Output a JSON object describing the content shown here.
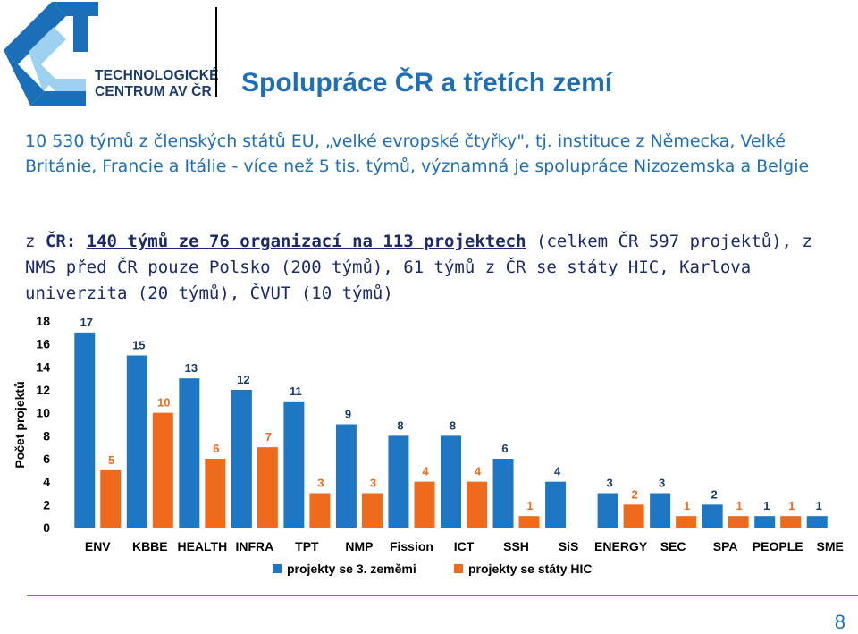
{
  "logo": {
    "line1": "TECHNOLOGICKÉ",
    "line2": "CENTRUM AV ČR"
  },
  "title": "Spolupráce ČR a třetích zemí",
  "para1": "10 530 týmů z členských států EU, „velké evropské čtyřky\", tj. instituce z Německa, Velké Británie, Francie a Itálie  - více než 5 tis. týmů, významná je spolupráce Nizozemska a Belgie",
  "para2": {
    "prefix": "z ",
    "cr": "ČR:",
    "bold": "140 týmů ze 76 organizací na 113 projektech",
    "rest": " (celkem ČR 597 projektů), z NMS před ČR pouze Polsko (200 týmů), 61 týmů z ČR se státy HIC, Karlova univerzita (20 týmů), ČVUT (10 týmů)"
  },
  "page_number": "8",
  "colors": {
    "series1": "#1f77c4",
    "series2": "#ee6a1c",
    "title": "#1f6fb8",
    "logo": "#1a5fa6"
  },
  "chart_data": {
    "type": "bar",
    "ylabel": "Počet projektů",
    "ylim": [
      0,
      18
    ],
    "yticks": [
      "0",
      "2",
      "4",
      "6",
      "8",
      "10",
      "12",
      "14",
      "16",
      "18"
    ],
    "categories": [
      "ENV",
      "KBBE",
      "HEALTH",
      "INFRA",
      "TPT",
      "NMP",
      "Fission",
      "ICT",
      "SSH",
      "SiS",
      "ENERGY",
      "SEC",
      "SPA",
      "PEOPLE",
      "SME"
    ],
    "series": [
      {
        "name": "projekty se 3. zeměmi",
        "values": [
          17,
          15,
          13,
          12,
          11,
          9,
          8,
          8,
          6,
          4,
          3,
          3,
          2,
          1,
          1
        ]
      },
      {
        "name": "projekty se státy HIC",
        "values": [
          5,
          10,
          6,
          7,
          3,
          3,
          4,
          4,
          1,
          null,
          2,
          1,
          1,
          1,
          null
        ]
      }
    ],
    "legend": "bottom",
    "grid": false
  }
}
